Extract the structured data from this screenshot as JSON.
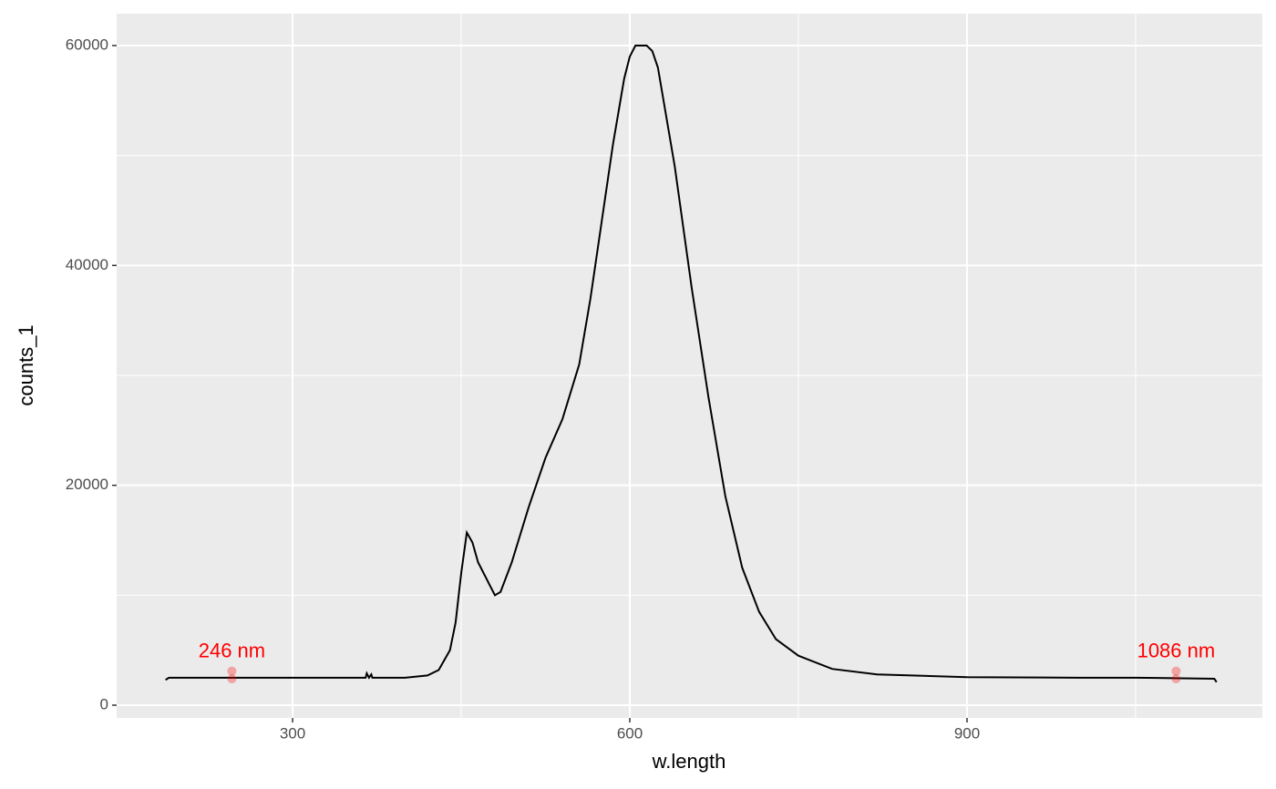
{
  "chart_data": {
    "type": "line",
    "xlabel": "w.length",
    "ylabel": "counts_1",
    "x": [
      187,
      190,
      250,
      300,
      350,
      365,
      366,
      368,
      370,
      371,
      400,
      420,
      430,
      440,
      445,
      450,
      455,
      460,
      465,
      475,
      480,
      485,
      495,
      510,
      525,
      540,
      555,
      565,
      575,
      585,
      595,
      600,
      605,
      615,
      620,
      625,
      640,
      655,
      670,
      685,
      700,
      715,
      730,
      750,
      780,
      820,
      900,
      1000,
      1050,
      1120,
      1122
    ],
    "series": [
      {
        "color": "#000000",
        "values": [
          2300,
          2500,
          2500,
          2500,
          2500,
          2500,
          2900,
          2500,
          2800,
          2500,
          2500,
          2700,
          3200,
          5000,
          7500,
          12000,
          15700,
          14800,
          13000,
          11000,
          10000,
          10300,
          13000,
          18000,
          22500,
          26000,
          31000,
          37000,
          44000,
          51000,
          57000,
          59000,
          60000,
          60000,
          59500,
          58000,
          49000,
          38000,
          28000,
          19000,
          12500,
          8500,
          6000,
          4500,
          3300,
          2800,
          2550,
          2500,
          2500,
          2400,
          2100
        ]
      }
    ],
    "annotations": [
      {
        "label": "246 nm",
        "x": 246,
        "values": [
          3100,
          2400
        ]
      },
      {
        "label": "1086 nm",
        "x": 1086,
        "values": [
          3100,
          2400
        ]
      }
    ],
    "annotation_color": "#ff0000",
    "xlim": [
      143.5,
      1162.7
    ],
    "ylim": [
      -1160,
      62900
    ],
    "xticks": [
      300,
      600,
      900
    ],
    "yticks": [
      0,
      20000,
      40000,
      60000
    ],
    "xminor": [
      450,
      750,
      1050
    ],
    "yminor": [
      10000,
      30000,
      50000
    ],
    "grid": true
  }
}
